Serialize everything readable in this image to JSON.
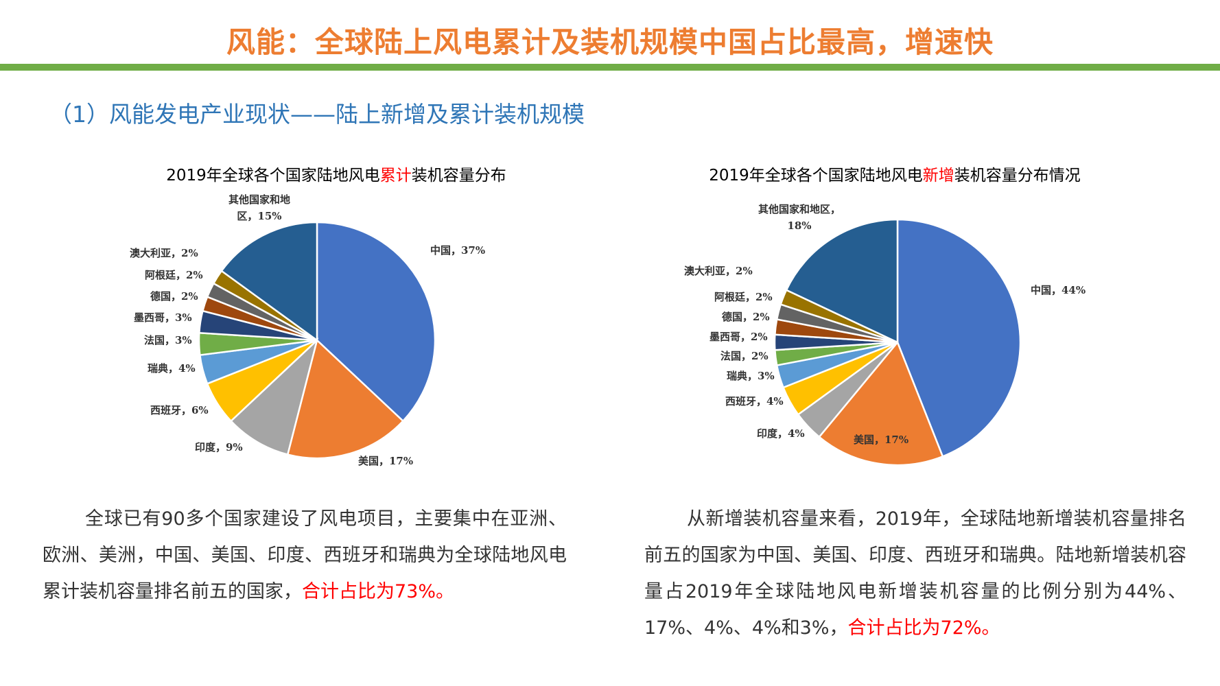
{
  "header": {
    "title": "风能：全球陆上风电累计及装机规模中国占比最高，增速快",
    "subtitle": "（1）风能发电产业现状——陆上新增及累计装机规模"
  },
  "chart_data": [
    {
      "type": "pie",
      "title_parts": [
        "2019年全球各个国家陆地风电",
        "累计",
        "装机容量分布"
      ],
      "unit": "%",
      "categories": [
        "中国",
        "美国",
        "印度",
        "西班牙",
        "瑞典",
        "法国",
        "墨西哥",
        "德国",
        "阿根廷",
        "澳大利亚",
        "其他国家和地区"
      ],
      "values": [
        37,
        17,
        9,
        6,
        4,
        3,
        3,
        2,
        2,
        2,
        15
      ],
      "colors": [
        "#4472C4",
        "#ED7D31",
        "#A5A5A5",
        "#FFC000",
        "#5B9BD5",
        "#70AD47",
        "#264478",
        "#9E480E",
        "#636363",
        "#997300",
        "#255E91"
      ]
    },
    {
      "type": "pie",
      "title_parts": [
        "2019年全球各个国家陆地风电",
        "新增",
        "装机容量分布情况"
      ],
      "unit": "%",
      "categories": [
        "中国",
        "美国",
        "印度",
        "西班牙",
        "瑞典",
        "法国",
        "墨西哥",
        "德国",
        "阿根廷",
        "澳大利亚",
        "其他国家和地区"
      ],
      "values": [
        44,
        17,
        4,
        4,
        3,
        2,
        2,
        2,
        2,
        2,
        18
      ],
      "colors": [
        "#4472C4",
        "#ED7D31",
        "#A5A5A5",
        "#FFC000",
        "#5B9BD5",
        "#70AD47",
        "#264478",
        "#9E480E",
        "#636363",
        "#997300",
        "#255E91"
      ]
    }
  ],
  "text": {
    "left_para": "全球已有90多个国家建设了风电项目，主要集中在亚洲、欧洲、美洲，中国、美国、印度、西班牙和瑞典为全球陆地风电累计装机容量排名前五的国家，",
    "left_highlight": "合计占比为73%。",
    "right_para": "从新增装机容量来看，2019年，全球陆地新增装机容量排名前五的国家为中国、美国、印度、西班牙和瑞典。陆地新增装机容量占2019年全球陆地风电新增装机容量的比例分别为44%、17%、4%、4%和3%，",
    "right_highlight": "合计占比为72%。"
  }
}
